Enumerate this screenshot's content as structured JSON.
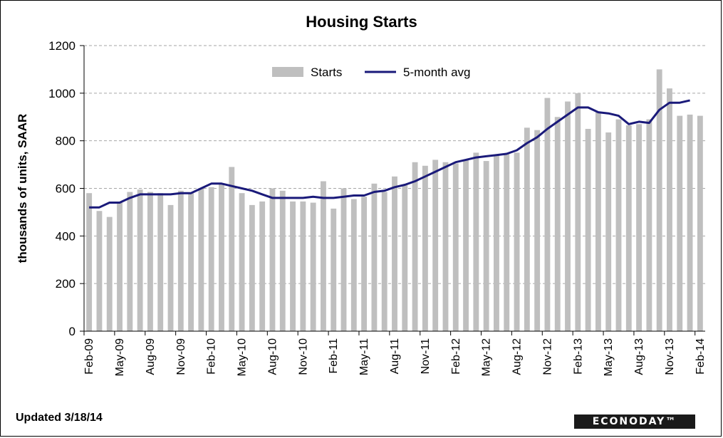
{
  "footer": {
    "updated": "Updated 3/18/14",
    "logo_text": "ECONODAY™"
  },
  "chart_data": {
    "type": "bar",
    "title": "Housing  Starts",
    "ylabel": "thousands of units, SAAR",
    "xlabel": "",
    "ylim": [
      0,
      1200
    ],
    "yticks": [
      0,
      200,
      400,
      600,
      800,
      1000,
      1200
    ],
    "grid": true,
    "legend_position": "top-center",
    "colors": {
      "bars": "#bfbfbf",
      "line": "#1a1a7a",
      "grid": "#a6a6a6"
    },
    "categories": [
      "Feb-09",
      "Mar-09",
      "Apr-09",
      "May-09",
      "Jun-09",
      "Jul-09",
      "Aug-09",
      "Sep-09",
      "Oct-09",
      "Nov-09",
      "Dec-09",
      "Jan-10",
      "Feb-10",
      "Mar-10",
      "Apr-10",
      "May-10",
      "Jun-10",
      "Jul-10",
      "Aug-10",
      "Sep-10",
      "Oct-10",
      "Nov-10",
      "Dec-10",
      "Jan-11",
      "Feb-11",
      "Mar-11",
      "Apr-11",
      "May-11",
      "Jun-11",
      "Jul-11",
      "Aug-11",
      "Sep-11",
      "Oct-11",
      "Nov-11",
      "Dec-11",
      "Jan-12",
      "Feb-12",
      "Mar-12",
      "Apr-12",
      "May-12",
      "Jun-12",
      "Jul-12",
      "Aug-12",
      "Sep-12",
      "Oct-12",
      "Nov-12",
      "Dec-12",
      "Jan-13",
      "Feb-13",
      "Mar-13",
      "Apr-13",
      "May-13",
      "Jun-13",
      "Jul-13",
      "Aug-13",
      "Sep-13",
      "Oct-13",
      "Nov-13",
      "Dec-13",
      "Jan-14",
      "Feb-14"
    ],
    "tick_labels": [
      "Feb-09",
      "May-09",
      "Aug-09",
      "Nov-09",
      "Feb-10",
      "May-10",
      "Aug-10",
      "Nov-10",
      "Feb-11",
      "May-11",
      "Aug-11",
      "Nov-11",
      "Feb-12",
      "May-12",
      "Aug-12",
      "Nov-12",
      "Feb-13",
      "May-13",
      "Aug-13",
      "Nov-13",
      "Feb-14"
    ],
    "series": [
      {
        "name": "Starts",
        "type": "bar",
        "values": [
          580,
          505,
          480,
          540,
          585,
          595,
          585,
          580,
          530,
          590,
          580,
          600,
          605,
          620,
          690,
          580,
          530,
          545,
          600,
          590,
          545,
          545,
          540,
          630,
          515,
          600,
          555,
          565,
          620,
          585,
          650,
          615,
          710,
          695,
          720,
          710,
          705,
          720,
          750,
          715,
          740,
          745,
          750,
          855,
          845,
          980,
          900,
          965,
          1000,
          850,
          920,
          835,
          890,
          865,
          870,
          890,
          1100,
          1020,
          905,
          910,
          905
        ]
      },
      {
        "name": "5-month avg",
        "type": "line",
        "values": [
          520,
          520,
          540,
          540,
          560,
          575,
          575,
          575,
          575,
          580,
          580,
          600,
          620,
          620,
          610,
          600,
          590,
          575,
          560,
          560,
          560,
          560,
          565,
          560,
          560,
          565,
          570,
          570,
          585,
          590,
          605,
          615,
          630,
          650,
          670,
          690,
          710,
          720,
          730,
          735,
          740,
          745,
          760,
          790,
          815,
          850,
          880,
          910,
          940,
          940,
          920,
          915,
          905,
          870,
          880,
          875,
          930,
          960,
          960,
          970,
          null
        ]
      }
    ]
  }
}
